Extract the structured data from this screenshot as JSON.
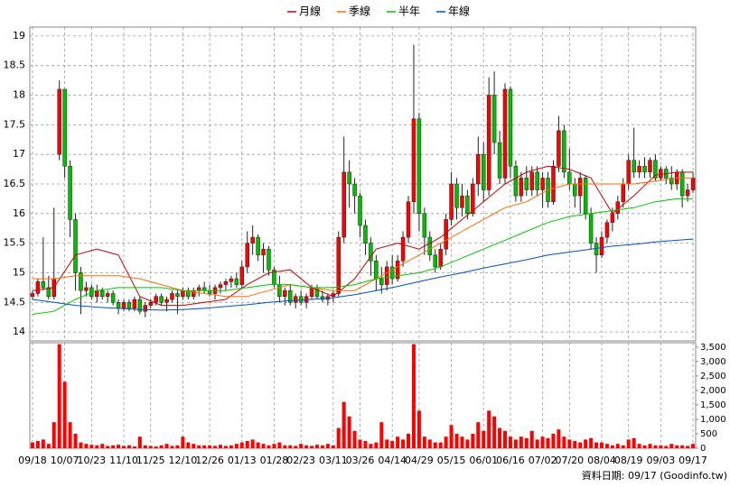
{
  "chart_data": {
    "type": "candlestick",
    "xlim": [
      -0.5,
      123.5
    ],
    "xticks": [
      {
        "value": 0,
        "label": "09/18"
      },
      {
        "value": 6,
        "label": "10/07"
      },
      {
        "value": 11,
        "label": "10/23"
      },
      {
        "value": 17,
        "label": "11/10"
      },
      {
        "value": 22,
        "label": "11/25"
      },
      {
        "value": 28,
        "label": "12/10"
      },
      {
        "value": 33,
        "label": "12/26"
      },
      {
        "value": 39,
        "label": "01/13"
      },
      {
        "value": 45,
        "label": "01/28"
      },
      {
        "value": 50,
        "label": "02/23"
      },
      {
        "value": 56,
        "label": "03/11"
      },
      {
        "value": 61,
        "label": "03/26"
      },
      {
        "value": 67,
        "label": "04/14"
      },
      {
        "value": 72,
        "label": "04/29"
      },
      {
        "value": 78,
        "label": "05/15"
      },
      {
        "value": 84,
        "label": "06/01"
      },
      {
        "value": 89,
        "label": "06/16"
      },
      {
        "value": 95,
        "label": "07/02"
      },
      {
        "value": 100,
        "label": "07/20"
      },
      {
        "value": 106,
        "label": "08/04"
      },
      {
        "value": 111,
        "label": "08/19"
      },
      {
        "value": 117,
        "label": "09/03"
      },
      {
        "value": 123,
        "label": "09/17"
      }
    ],
    "ylim": [
      13.85,
      19.15
    ],
    "yticks": [
      14,
      14.5,
      15,
      15.5,
      16,
      16.5,
      17,
      17.5,
      18,
      18.5,
      19
    ],
    "grid": true,
    "up_color": "#ff0000",
    "down_color": "#00c000",
    "ohlc": [
      [
        14.6,
        14.7,
        14.55,
        14.65
      ],
      [
        14.65,
        14.9,
        14.6,
        14.85
      ],
      [
        14.85,
        15.6,
        14.7,
        14.75
      ],
      [
        14.75,
        14.95,
        14.55,
        14.6
      ],
      [
        14.6,
        16.1,
        14.55,
        14.9
      ],
      [
        17.0,
        18.25,
        16.9,
        18.1
      ],
      [
        18.1,
        18.1,
        16.6,
        16.8
      ],
      [
        16.8,
        16.9,
        15.6,
        15.9
      ],
      [
        15.9,
        16.0,
        14.7,
        15.0
      ],
      [
        15.0,
        15.1,
        14.3,
        14.7
      ],
      [
        14.7,
        14.85,
        14.6,
        14.75
      ],
      [
        14.75,
        14.8,
        14.55,
        14.6
      ],
      [
        14.6,
        14.8,
        14.5,
        14.7
      ],
      [
        14.7,
        14.75,
        14.55,
        14.6
      ],
      [
        14.6,
        14.7,
        14.5,
        14.65
      ],
      [
        14.65,
        14.7,
        14.45,
        14.5
      ],
      [
        14.5,
        14.55,
        14.3,
        14.4
      ],
      [
        14.4,
        14.55,
        14.35,
        14.5
      ],
      [
        14.5,
        14.55,
        14.35,
        14.4
      ],
      [
        14.4,
        14.6,
        14.35,
        14.55
      ],
      [
        14.55,
        14.6,
        14.3,
        14.35
      ],
      [
        14.35,
        14.5,
        14.25,
        14.45
      ],
      [
        14.45,
        14.55,
        14.4,
        14.5
      ],
      [
        14.5,
        14.65,
        14.45,
        14.6
      ],
      [
        14.6,
        14.65,
        14.45,
        14.5
      ],
      [
        14.5,
        14.6,
        14.35,
        14.55
      ],
      [
        14.55,
        14.7,
        14.5,
        14.65
      ],
      [
        14.65,
        14.7,
        14.3,
        14.6
      ],
      [
        14.6,
        14.75,
        14.55,
        14.7
      ],
      [
        14.7,
        14.75,
        14.55,
        14.6
      ],
      [
        14.6,
        14.75,
        14.55,
        14.7
      ],
      [
        14.7,
        14.8,
        14.6,
        14.75
      ],
      [
        14.75,
        14.85,
        14.65,
        14.7
      ],
      [
        14.7,
        14.8,
        14.6,
        14.65
      ],
      [
        14.65,
        14.8,
        14.55,
        14.75
      ],
      [
        14.75,
        14.85,
        14.65,
        14.8
      ],
      [
        14.8,
        14.9,
        14.7,
        14.85
      ],
      [
        14.85,
        14.95,
        14.75,
        14.9
      ],
      [
        14.9,
        15.0,
        14.75,
        14.8
      ],
      [
        14.8,
        15.2,
        14.75,
        15.1
      ],
      [
        15.1,
        15.7,
        15.0,
        15.5
      ],
      [
        15.5,
        15.8,
        15.3,
        15.6
      ],
      [
        15.6,
        15.65,
        15.2,
        15.3
      ],
      [
        15.3,
        15.5,
        15.0,
        15.4
      ],
      [
        15.4,
        15.45,
        14.95,
        15.05
      ],
      [
        15.05,
        15.1,
        14.75,
        14.8
      ],
      [
        14.8,
        14.95,
        14.5,
        14.6
      ],
      [
        14.6,
        14.75,
        14.45,
        14.7
      ],
      [
        14.7,
        14.8,
        14.45,
        14.5
      ],
      [
        14.5,
        14.65,
        14.4,
        14.6
      ],
      [
        14.6,
        14.7,
        14.45,
        14.5
      ],
      [
        14.5,
        14.65,
        14.4,
        14.6
      ],
      [
        14.6,
        14.8,
        14.55,
        14.75
      ],
      [
        14.75,
        14.8,
        14.55,
        14.6
      ],
      [
        14.6,
        14.7,
        14.5,
        14.55
      ],
      [
        14.55,
        14.65,
        14.45,
        14.6
      ],
      [
        14.6,
        14.7,
        14.5,
        14.65
      ],
      [
        14.65,
        15.7,
        14.6,
        15.6
      ],
      [
        15.6,
        17.3,
        15.5,
        16.7
      ],
      [
        16.7,
        16.9,
        16.1,
        16.5
      ],
      [
        16.5,
        16.6,
        16.0,
        16.3
      ],
      [
        16.3,
        16.35,
        15.6,
        15.8
      ],
      [
        15.8,
        15.9,
        15.3,
        15.5
      ],
      [
        15.5,
        15.6,
        14.95,
        15.2
      ],
      [
        15.2,
        15.3,
        14.7,
        14.9
      ],
      [
        14.9,
        15.1,
        14.65,
        14.8
      ],
      [
        14.8,
        15.2,
        14.7,
        15.1
      ],
      [
        15.1,
        15.3,
        14.8,
        14.9
      ],
      [
        14.9,
        15.3,
        14.85,
        15.2
      ],
      [
        15.2,
        15.7,
        15.1,
        15.6
      ],
      [
        15.6,
        16.3,
        15.5,
        16.2
      ],
      [
        16.2,
        18.85,
        16.0,
        17.6
      ],
      [
        17.6,
        17.7,
        15.7,
        16.0
      ],
      [
        16.0,
        16.1,
        15.3,
        15.6
      ],
      [
        15.6,
        15.7,
        15.2,
        15.3
      ],
      [
        15.3,
        15.4,
        15.0,
        15.1
      ],
      [
        15.1,
        15.5,
        15.05,
        15.4
      ],
      [
        15.4,
        16.0,
        15.3,
        15.9
      ],
      [
        15.9,
        16.7,
        15.8,
        16.5
      ],
      [
        16.5,
        16.6,
        15.9,
        16.1
      ],
      [
        16.1,
        16.5,
        15.95,
        16.3
      ],
      [
        16.3,
        16.4,
        15.9,
        16.0
      ],
      [
        16.0,
        16.6,
        15.95,
        16.5
      ],
      [
        16.5,
        17.3,
        16.3,
        17.0
      ],
      [
        17.0,
        17.2,
        16.2,
        16.4
      ],
      [
        16.4,
        18.3,
        16.3,
        18.0
      ],
      [
        18.0,
        18.4,
        17.0,
        17.2
      ],
      [
        17.2,
        17.4,
        16.5,
        16.6
      ],
      [
        16.6,
        18.2,
        16.5,
        18.1
      ],
      [
        18.1,
        18.15,
        16.6,
        16.8
      ],
      [
        16.8,
        16.9,
        16.2,
        16.3
      ],
      [
        16.3,
        16.7,
        16.2,
        16.6
      ],
      [
        16.6,
        16.8,
        16.3,
        16.4
      ],
      [
        16.4,
        16.8,
        16.3,
        16.7
      ],
      [
        16.7,
        16.8,
        16.3,
        16.4
      ],
      [
        16.4,
        16.7,
        16.1,
        16.6
      ],
      [
        16.6,
        16.7,
        16.1,
        16.2
      ],
      [
        16.2,
        16.9,
        16.15,
        16.8
      ],
      [
        16.8,
        17.65,
        16.7,
        17.4
      ],
      [
        17.4,
        17.5,
        16.6,
        16.7
      ],
      [
        16.7,
        17.1,
        16.4,
        16.5
      ],
      [
        16.5,
        16.6,
        16.1,
        16.3
      ],
      [
        16.3,
        16.7,
        16.0,
        16.6
      ],
      [
        16.6,
        16.65,
        15.9,
        16.0
      ],
      [
        16.0,
        16.1,
        15.4,
        15.5
      ],
      [
        15.5,
        15.6,
        15.0,
        15.3
      ],
      [
        15.3,
        15.7,
        15.25,
        15.6
      ],
      [
        15.6,
        15.9,
        15.5,
        15.85
      ],
      [
        15.85,
        16.1,
        15.7,
        16.0
      ],
      [
        16.0,
        16.3,
        15.9,
        16.2
      ],
      [
        16.2,
        16.6,
        16.1,
        16.5
      ],
      [
        16.5,
        17.0,
        16.4,
        16.9
      ],
      [
        16.9,
        17.45,
        16.6,
        16.7
      ],
      [
        16.7,
        16.9,
        16.6,
        16.8
      ],
      [
        16.8,
        16.95,
        16.6,
        16.7
      ],
      [
        16.7,
        16.95,
        16.6,
        16.9
      ],
      [
        16.9,
        17.0,
        16.55,
        16.6
      ],
      [
        16.6,
        16.8,
        16.55,
        16.75
      ],
      [
        16.75,
        16.8,
        16.5,
        16.6
      ],
      [
        16.6,
        16.8,
        16.4,
        16.5
      ],
      [
        16.5,
        16.75,
        16.4,
        16.7
      ],
      [
        16.7,
        16.75,
        16.1,
        16.3
      ],
      [
        16.3,
        16.5,
        16.2,
        16.4
      ],
      [
        16.4,
        16.7,
        16.35,
        16.6
      ]
    ],
    "lines": {
      "x": [
        0,
        4,
        8,
        12,
        16,
        20,
        24,
        28,
        32,
        36,
        40,
        44,
        48,
        52,
        56,
        60,
        64,
        68,
        72,
        76,
        80,
        84,
        88,
        92,
        96,
        100,
        104,
        108,
        112,
        116,
        120,
        123
      ],
      "series": [
        {
          "name": "月線",
          "color": "#cc0000",
          "values": [
            14.7,
            14.75,
            15.3,
            15.4,
            15.3,
            14.6,
            14.45,
            14.45,
            14.5,
            14.55,
            14.8,
            15.0,
            15.05,
            14.75,
            14.6,
            14.9,
            15.4,
            15.5,
            15.4,
            15.6,
            15.9,
            16.2,
            16.5,
            16.7,
            16.8,
            16.75,
            16.6,
            16.0,
            16.3,
            16.65,
            16.7,
            16.7
          ]
        },
        {
          "name": "季線",
          "color": "#ff6a00",
          "values": [
            14.9,
            14.9,
            14.95,
            14.95,
            14.95,
            14.9,
            14.8,
            14.7,
            14.65,
            14.6,
            14.6,
            14.7,
            14.8,
            14.75,
            14.7,
            14.7,
            14.9,
            15.1,
            15.3,
            15.5,
            15.7,
            15.9,
            16.1,
            16.2,
            16.4,
            16.5,
            16.5,
            16.5,
            16.5,
            16.55,
            16.6,
            16.6
          ]
        },
        {
          "name": "半年",
          "color": "#00c800",
          "values": [
            14.3,
            14.35,
            14.55,
            14.7,
            14.75,
            14.75,
            14.75,
            14.7,
            14.7,
            14.7,
            14.75,
            14.8,
            14.8,
            14.75,
            14.75,
            14.8,
            14.9,
            14.95,
            15.0,
            15.1,
            15.25,
            15.4,
            15.55,
            15.7,
            15.85,
            15.95,
            16.0,
            16.05,
            16.1,
            16.2,
            16.25,
            16.25
          ]
        },
        {
          "name": "年線",
          "color": "#0050c8",
          "values": [
            14.55,
            14.5,
            14.45,
            14.42,
            14.4,
            14.38,
            14.37,
            14.38,
            14.4,
            14.43,
            14.46,
            14.5,
            14.53,
            14.55,
            14.58,
            14.63,
            14.7,
            14.77,
            14.85,
            14.93,
            15.0,
            15.08,
            15.15,
            15.22,
            15.3,
            15.35,
            15.4,
            15.45,
            15.48,
            15.52,
            15.55,
            15.57
          ]
        }
      ]
    },
    "volume": {
      "color": "#ff0000",
      "ylim": [
        0,
        3650
      ],
      "yticks": [
        0,
        500,
        {
          "value": 1000,
          "label": "1,000"
        },
        {
          "value": 1500,
          "label": "1,500"
        },
        {
          "value": 2000,
          "label": "2,000"
        },
        {
          "value": 2500,
          "label": "2,500"
        },
        {
          "value": 3000,
          "label": "3,000"
        },
        {
          "value": 3500,
          "label": "3,500"
        }
      ],
      "values": [
        200,
        250,
        300,
        150,
        900,
        3600,
        2300,
        900,
        500,
        200,
        150,
        120,
        100,
        150,
        80,
        100,
        120,
        80,
        100,
        60,
        400,
        100,
        80,
        60,
        100,
        150,
        80,
        100,
        400,
        200,
        150,
        100,
        100,
        100,
        80,
        120,
        80,
        100,
        150,
        200,
        250,
        300,
        200,
        150,
        100,
        150,
        200,
        100,
        100,
        80,
        150,
        100,
        80,
        120,
        100,
        150,
        100,
        700,
        1600,
        1100,
        600,
        300,
        250,
        150,
        200,
        900,
        300,
        250,
        400,
        300,
        500,
        3600,
        1300,
        400,
        300,
        200,
        200,
        400,
        800,
        500,
        400,
        300,
        500,
        900,
        600,
        1300,
        1100,
        700,
        600,
        400,
        300,
        400,
        350,
        600,
        300,
        400,
        350,
        500,
        650,
        400,
        300,
        250,
        200,
        300,
        350,
        200,
        200,
        150,
        100,
        150,
        100,
        300,
        350,
        150,
        100,
        150,
        100,
        100,
        80,
        150,
        100,
        100,
        80,
        150
      ]
    },
    "footer": "資料日期: 09/17 (Goodinfo.tw)"
  }
}
